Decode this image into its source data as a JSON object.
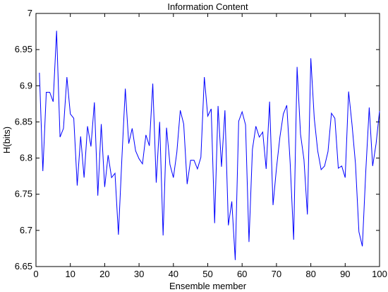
{
  "chart_data": {
    "type": "line",
    "title": "Information Content",
    "xlabel": "Ensemble member",
    "ylabel": "H(bits)",
    "xlim": [
      0,
      100
    ],
    "ylim": [
      6.65,
      7.0
    ],
    "xticks": [
      "0",
      "10",
      "20",
      "30",
      "40",
      "50",
      "60",
      "70",
      "80",
      "90",
      "100"
    ],
    "yticks": [
      "6.65",
      "6.7",
      "6.75",
      "6.8",
      "6.85",
      "6.9",
      "6.95",
      "7"
    ],
    "grid": false,
    "line_color": "#0000ff",
    "series": [
      {
        "x": [
          1,
          2,
          3,
          4,
          5,
          6,
          7,
          8,
          9,
          10,
          11,
          12,
          13,
          14,
          15,
          16,
          17,
          18,
          19,
          20,
          21,
          22,
          23,
          24,
          25,
          26,
          27,
          28,
          29,
          30,
          31,
          32,
          33,
          34,
          35,
          36,
          37,
          38,
          39,
          40,
          41,
          42,
          43,
          44,
          45,
          46,
          47,
          48,
          49,
          50,
          51,
          52,
          53,
          54,
          55,
          56,
          57,
          58,
          59,
          60,
          61,
          62,
          63,
          64,
          65,
          66,
          67,
          68,
          69,
          70,
          71,
          72,
          73,
          74,
          75,
          76,
          77,
          78,
          79,
          80,
          81,
          82,
          83,
          84,
          85,
          86,
          87,
          88,
          89,
          90,
          91,
          92,
          93,
          94,
          95,
          96,
          97,
          98,
          99,
          100
        ],
        "values": [
          6.918,
          6.782,
          6.891,
          6.891,
          6.878,
          6.976,
          6.829,
          6.841,
          6.912,
          6.861,
          6.855,
          6.762,
          6.83,
          6.773,
          6.844,
          6.816,
          6.877,
          6.748,
          6.847,
          6.76,
          6.804,
          6.773,
          6.779,
          6.694,
          6.799,
          6.896,
          6.82,
          6.841,
          6.81,
          6.799,
          6.792,
          6.832,
          6.817,
          6.903,
          6.766,
          6.85,
          6.693,
          6.842,
          6.791,
          6.773,
          6.808,
          6.866,
          6.847,
          6.764,
          6.797,
          6.797,
          6.785,
          6.801,
          6.912,
          6.858,
          6.868,
          6.71,
          6.872,
          6.788,
          6.866,
          6.707,
          6.74,
          6.659,
          6.851,
          6.864,
          6.846,
          6.684,
          6.812,
          6.844,
          6.829,
          6.836,
          6.785,
          6.878,
          6.735,
          6.786,
          6.829,
          6.861,
          6.873,
          6.792,
          6.687,
          6.926,
          6.833,
          6.798,
          6.722,
          6.938,
          6.855,
          6.81,
          6.784,
          6.789,
          6.809,
          6.862,
          6.855,
          6.786,
          6.789,
          6.773,
          6.892,
          6.846,
          6.792,
          6.698,
          6.678,
          6.782,
          6.87,
          6.789,
          6.82,
          6.865
        ]
      }
    ]
  }
}
